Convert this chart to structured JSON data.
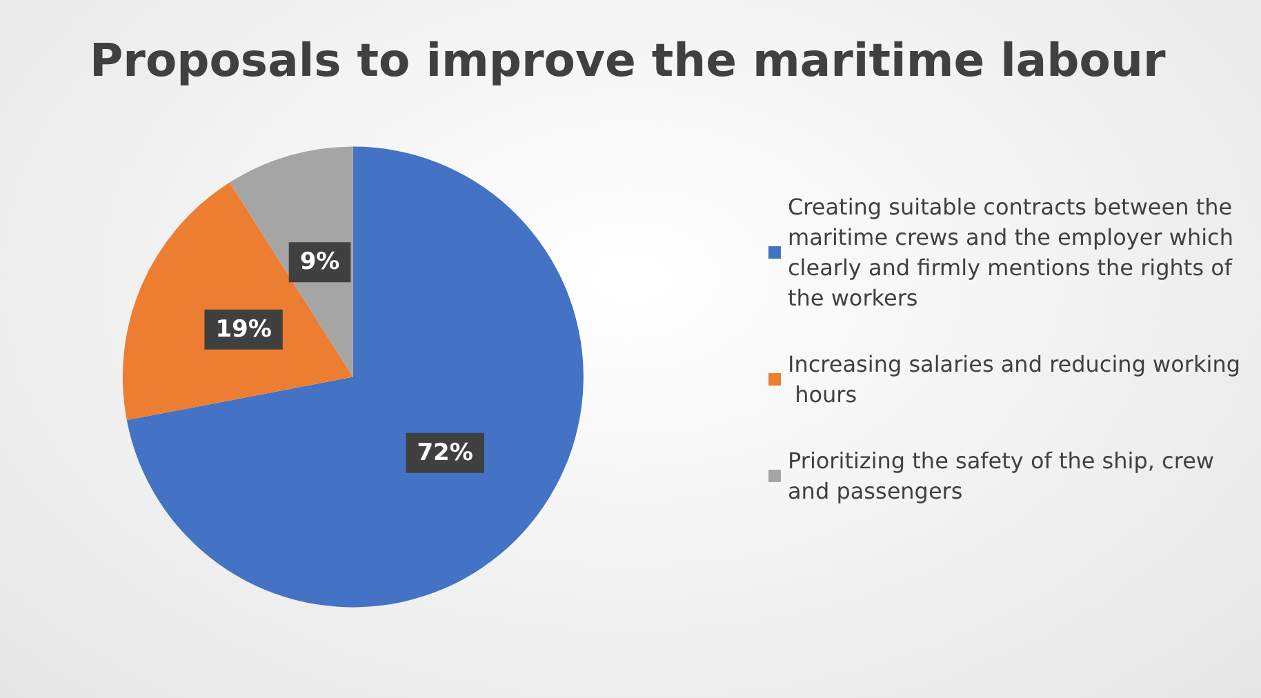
{
  "chart_data": {
    "type": "pie",
    "title": "Proposals to improve the maritime labour",
    "categories": [
      "Creating suitable contracts between the maritime crews and the employer which clearly and firmly mentions the rights of the workers",
      "Increasing salaries and reducing working hours",
      "Prioritizing the safety of the ship, crew and passengers"
    ],
    "values": [
      72,
      19,
      9
    ],
    "colors": [
      "#4472c4",
      "#ed7d31",
      "#a5a5a5"
    ],
    "value_labels": [
      "72%",
      "19%",
      "9%"
    ],
    "legend": "right"
  }
}
